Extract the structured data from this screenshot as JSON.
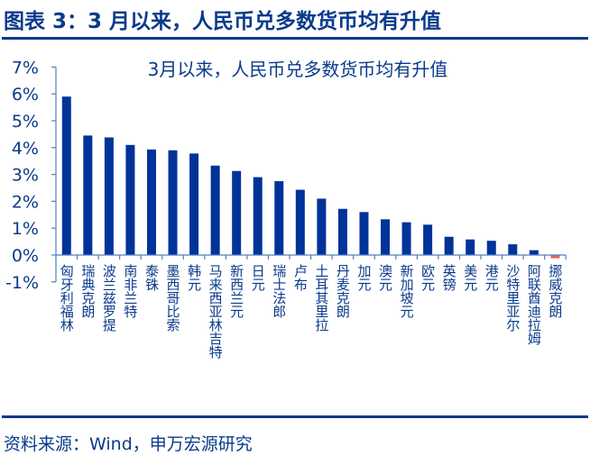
{
  "header": {
    "title": "图表 3：3 月以来，人民币兑多数货币均有升值"
  },
  "footer": {
    "source": "资料来源：Wind，申万宏源研究"
  },
  "colors": {
    "positive_bar": "#003399",
    "negative_bar": "#e06666",
    "text": "#0a3a8c",
    "axis": "#4f81bd"
  },
  "chart_data": {
    "type": "bar",
    "title": "3月以来，人民币兑多数货币均有升值",
    "xlabel": "",
    "ylabel": "",
    "ylim": [
      -0.01,
      0.07
    ],
    "yticks": [
      "-1%",
      "0%",
      "1%",
      "2%",
      "3%",
      "4%",
      "5%",
      "6%",
      "7%"
    ],
    "grid": false,
    "legend": null,
    "categories": [
      "匈牙利福林",
      "瑞典克朗",
      "波兰兹罗提",
      "南非兰特",
      "泰铢",
      "墨西哥比索",
      "韩元",
      "马来西亚林吉特",
      "新西兰元",
      "日元",
      "瑞士法郎",
      "卢布",
      "土耳其里拉",
      "丹麦克朗",
      "加元",
      "澳元",
      "新加坡元",
      "欧元",
      "英镑",
      "美元",
      "港元",
      "沙特里亚尔",
      "阿联酋迪拉姆",
      "挪威克朗"
    ],
    "values": [
      5.9,
      4.45,
      4.38,
      4.1,
      3.93,
      3.9,
      3.78,
      3.33,
      3.13,
      2.9,
      2.75,
      2.43,
      2.1,
      1.72,
      1.6,
      1.33,
      1.22,
      1.13,
      0.68,
      0.58,
      0.53,
      0.4,
      0.18,
      -0.12
    ],
    "unit": "%"
  }
}
